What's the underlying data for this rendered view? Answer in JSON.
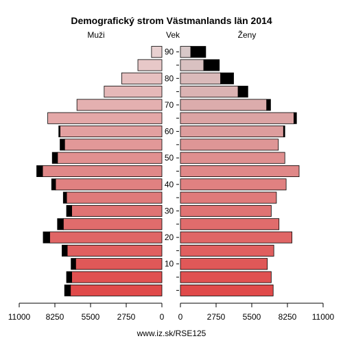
{
  "chart_data": {
    "type": "bar",
    "title": "Demografický strom Västmanlands län 2014",
    "left_label": "Muži",
    "center_label": "Vek",
    "right_label": "Ženy",
    "footer": "www.iz.sk/RSE125",
    "xlim": [
      0,
      11000
    ],
    "x_ticks": [
      11000,
      8250,
      5500,
      2750,
      0
    ],
    "x_tick_labels": [
      "11000",
      "8250",
      "5500",
      "2750",
      "0"
    ],
    "age_groups": [
      "0-4",
      "5-9",
      "10-14",
      "15-19",
      "20-24",
      "25-29",
      "30-34",
      "35-39",
      "40-44",
      "45-49",
      "50-54",
      "55-59",
      "60-64",
      "65-69",
      "70-74",
      "75-79",
      "80-84",
      "85-89",
      "90+"
    ],
    "age_tick_labels": [
      {
        "group": "10-14",
        "label": "10"
      },
      {
        "group": "20-24",
        "label": "20"
      },
      {
        "group": "30-34",
        "label": "30"
      },
      {
        "group": "40-44",
        "label": "40"
      },
      {
        "group": "50-54",
        "label": "50"
      },
      {
        "group": "60-64",
        "label": "60"
      },
      {
        "group": "70-74",
        "label": "70"
      },
      {
        "group": "80-84",
        "label": "80"
      },
      {
        "group": "90+",
        "label": "90"
      }
    ],
    "series": [
      {
        "name": "Muži",
        "side": "left",
        "values": [
          7050,
          6950,
          6650,
          7300,
          8650,
          7600,
          6950,
          7350,
          8200,
          9200,
          8050,
          7500,
          7850,
          8800,
          6550,
          4450,
          3100,
          1850,
          800
        ],
        "surplus": [
          450,
          400,
          350,
          400,
          500,
          450,
          400,
          250,
          300,
          450,
          400,
          350,
          100,
          0,
          0,
          0,
          0,
          0,
          0
        ]
      },
      {
        "name": "Ženy",
        "side": "right",
        "values": [
          7150,
          7000,
          6700,
          7200,
          8600,
          7600,
          7000,
          7400,
          8150,
          9150,
          8050,
          7550,
          7950,
          8750,
          6650,
          4450,
          3100,
          1800,
          800
        ],
        "surplus": [
          0,
          0,
          0,
          0,
          0,
          0,
          0,
          0,
          0,
          0,
          0,
          0,
          100,
          200,
          300,
          750,
          1000,
          1200,
          1150
        ]
      }
    ],
    "colors": {
      "bar_bottom": "#e04a4a",
      "bar_mid": "#e08888",
      "bar_top": "#e8d0d0",
      "right_bar_top": "#d8c8c8",
      "surplus": "#000000",
      "border": "#000000"
    },
    "grid": false
  }
}
